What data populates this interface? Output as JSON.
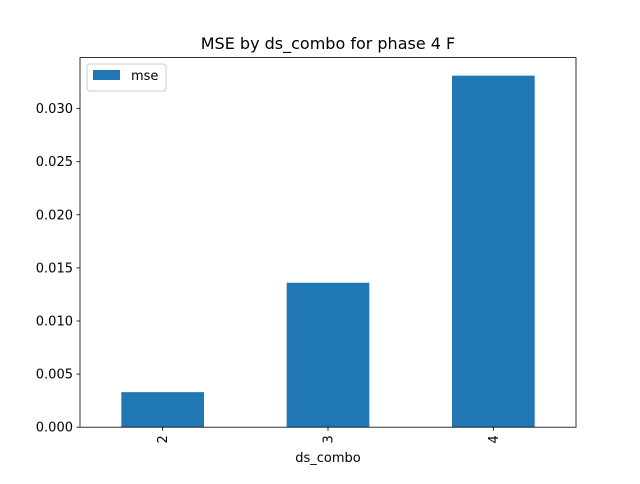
{
  "chart_data": {
    "type": "bar",
    "title": "MSE by ds_combo for phase 4 F",
    "xlabel": "ds_combo",
    "ylabel": "",
    "categories": [
      "2",
      "3",
      "4"
    ],
    "series": [
      {
        "name": "mse",
        "values": [
          0.0033,
          0.0136,
          0.0331
        ],
        "color": "#1f77b4"
      }
    ],
    "ylim": [
      0,
      0.0348
    ],
    "yticks": [
      0.0,
      0.005,
      0.01,
      0.015,
      0.02,
      0.025,
      0.03
    ],
    "ytick_labels": [
      "0.000",
      "0.005",
      "0.010",
      "0.015",
      "0.020",
      "0.025",
      "0.030"
    ],
    "xtick_rotation": "vertical",
    "grid": false,
    "legend_position": "upper left"
  }
}
